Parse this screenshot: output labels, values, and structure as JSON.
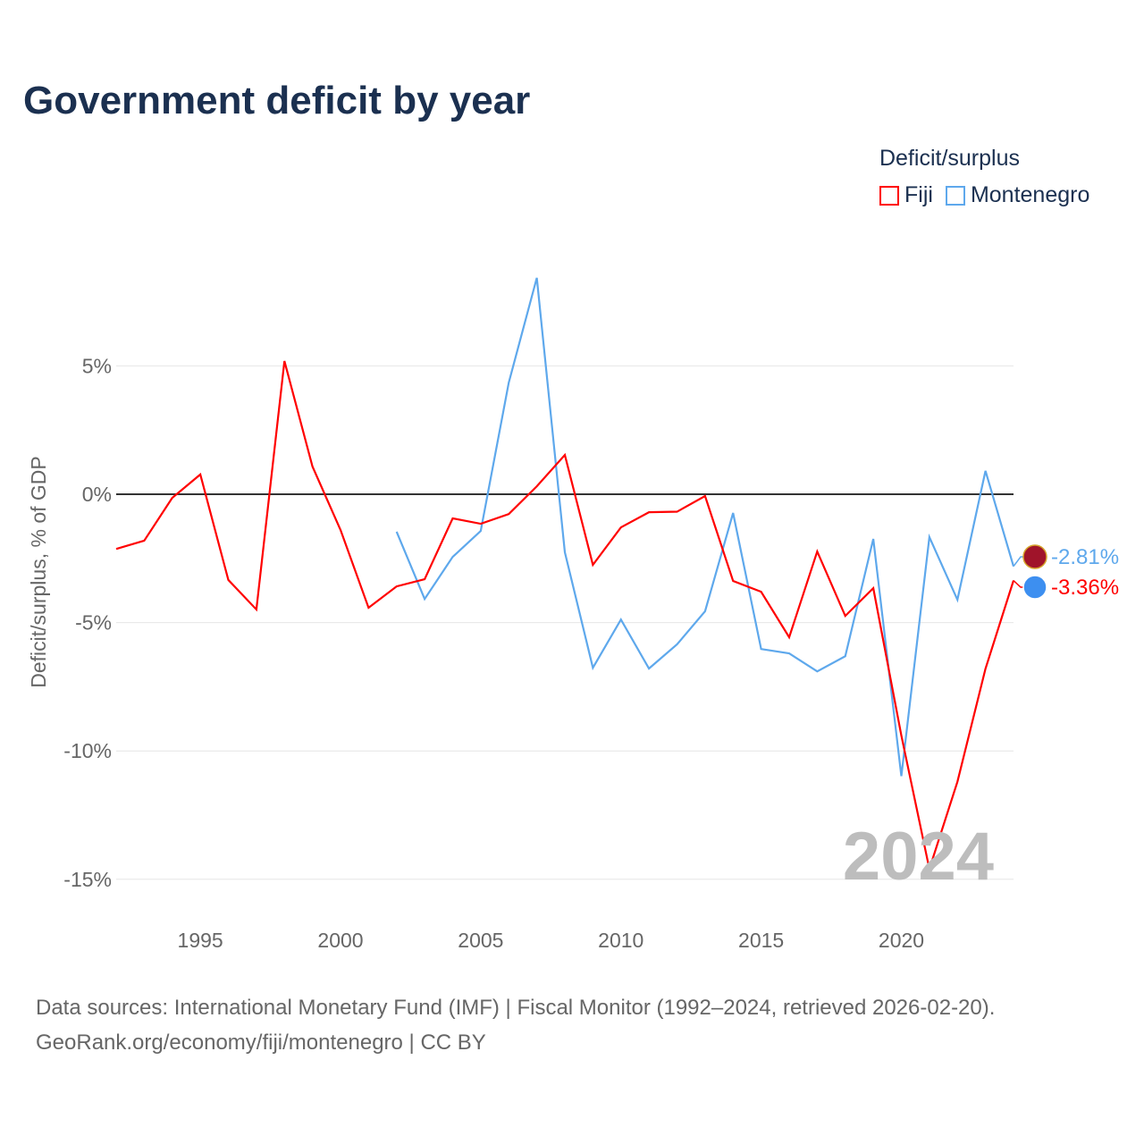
{
  "title": "Government deficit by year",
  "legend": {
    "title": "Deficit/surplus",
    "items": [
      {
        "label": "Fiji",
        "color": "#ff0000"
      },
      {
        "label": "Montenegro",
        "color": "#5ea8ec"
      }
    ]
  },
  "source": {
    "line1": "Data sources: International Monetary Fund (IMF) | Fiscal Monitor (1992–2024, retrieved 2026-02-20).",
    "line2": "GeoRank.org/economy/fiji/montenegro | CC BY"
  },
  "chart_data": {
    "type": "line",
    "title": "Government deficit by year",
    "xlabel": "",
    "ylabel": "Deficit/surplus, % of GDP",
    "xlim": [
      1992,
      2024
    ],
    "ylim": [
      -16,
      10
    ],
    "yticks": [
      5,
      0,
      -5,
      -10,
      -15
    ],
    "ytick_labels": [
      "5%",
      "0%",
      "-5%",
      "-10%",
      "-15%"
    ],
    "xticks": [
      1995,
      2000,
      2005,
      2010,
      2015,
      2020
    ],
    "xtick_labels": [
      "1995",
      "2000",
      "2005",
      "2010",
      "2015",
      "2020"
    ],
    "year_watermark": "2024",
    "series": [
      {
        "name": "Fiji",
        "color": "#ff0000",
        "end_label": "-3.36%",
        "x": [
          1992,
          1993,
          1994,
          1995,
          1996,
          1997,
          1998,
          1999,
          2000,
          2001,
          2002,
          2003,
          2004,
          2005,
          2006,
          2007,
          2008,
          2009,
          2010,
          2011,
          2012,
          2013,
          2014,
          2015,
          2016,
          2017,
          2018,
          2019,
          2020,
          2021,
          2022,
          2023,
          2024
        ],
        "y": [
          -2.13,
          -1.81,
          -0.14,
          0.77,
          -3.34,
          -4.49,
          5.19,
          1.08,
          -1.39,
          -4.42,
          -3.59,
          -3.31,
          -0.94,
          -1.15,
          -0.77,
          0.31,
          1.53,
          -2.75,
          -1.29,
          -0.7,
          -0.68,
          -0.07,
          -3.38,
          -3.8,
          -5.57,
          -2.23,
          -4.74,
          -3.66,
          -9.4,
          -14.6,
          -11.2,
          -6.8,
          -3.36
        ]
      },
      {
        "name": "Montenegro",
        "color": "#5ea8ec",
        "end_label": "-2.81%",
        "x": [
          2002,
          2003,
          2004,
          2005,
          2006,
          2007,
          2008,
          2009,
          2010,
          2011,
          2012,
          2013,
          2014,
          2015,
          2016,
          2017,
          2018,
          2019,
          2020,
          2021,
          2022,
          2023,
          2024
        ],
        "y": [
          -1.46,
          -4.08,
          -2.44,
          -1.43,
          4.35,
          8.43,
          -2.26,
          -6.76,
          -4.88,
          -6.79,
          -5.85,
          -4.56,
          -0.73,
          -6.03,
          -6.2,
          -6.9,
          -6.31,
          -1.74,
          -10.98,
          -1.67,
          -4.11,
          0.91,
          -2.81
        ]
      }
    ]
  }
}
